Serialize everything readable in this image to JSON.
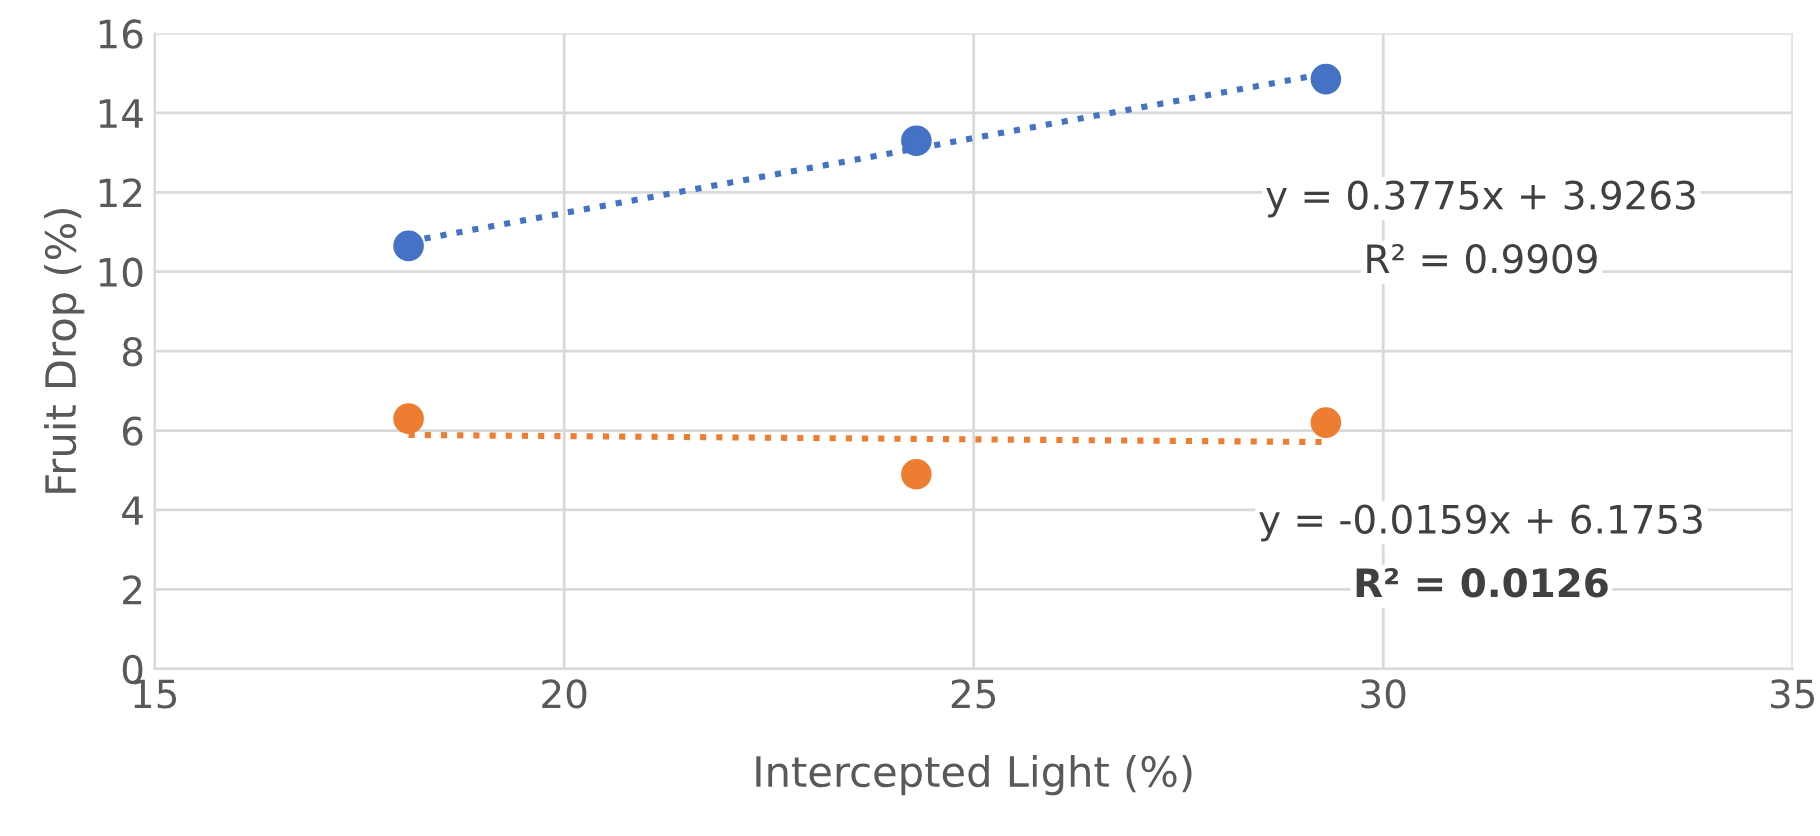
{
  "chart_data": {
    "type": "scatter",
    "xlabel": "Intercepted Light (%)",
    "ylabel": "Fruit Drop (%)",
    "xlim": [
      15,
      35
    ],
    "xticks": [
      15,
      20,
      25,
      30,
      35
    ],
    "ylim": [
      0,
      16
    ],
    "yticks": [
      0,
      2,
      4,
      6,
      8,
      10,
      12,
      14,
      16
    ],
    "grid": true,
    "legend": false,
    "marker": "circle",
    "series": [
      {
        "color": "#4472c4",
        "x": [
          18.1,
          24.3,
          29.3
        ],
        "values": [
          10.65,
          13.3,
          14.85
        ]
      },
      {
        "color": "#ed7d31",
        "x": [
          18.1,
          24.3,
          29.3
        ],
        "values": [
          6.3,
          4.9,
          6.2
        ]
      },
      {
        "type": "line",
        "line_style": "dotted",
        "marker": "none",
        "color": "#4472c4",
        "x": [
          18.1,
          29.3
        ],
        "values": [
          10.76,
          14.99
        ]
      },
      {
        "type": "line",
        "line_style": "dotted",
        "marker": "none",
        "color": "#ed7d31",
        "x": [
          18.1,
          29.3
        ],
        "values": [
          5.89,
          5.71
        ]
      }
    ],
    "annotations": [
      "y = 0.3775x + 3.9263",
      "R² = 0.9909",
      "y = -0.0159x + 6.1753",
      "R² = 0.0126"
    ]
  }
}
